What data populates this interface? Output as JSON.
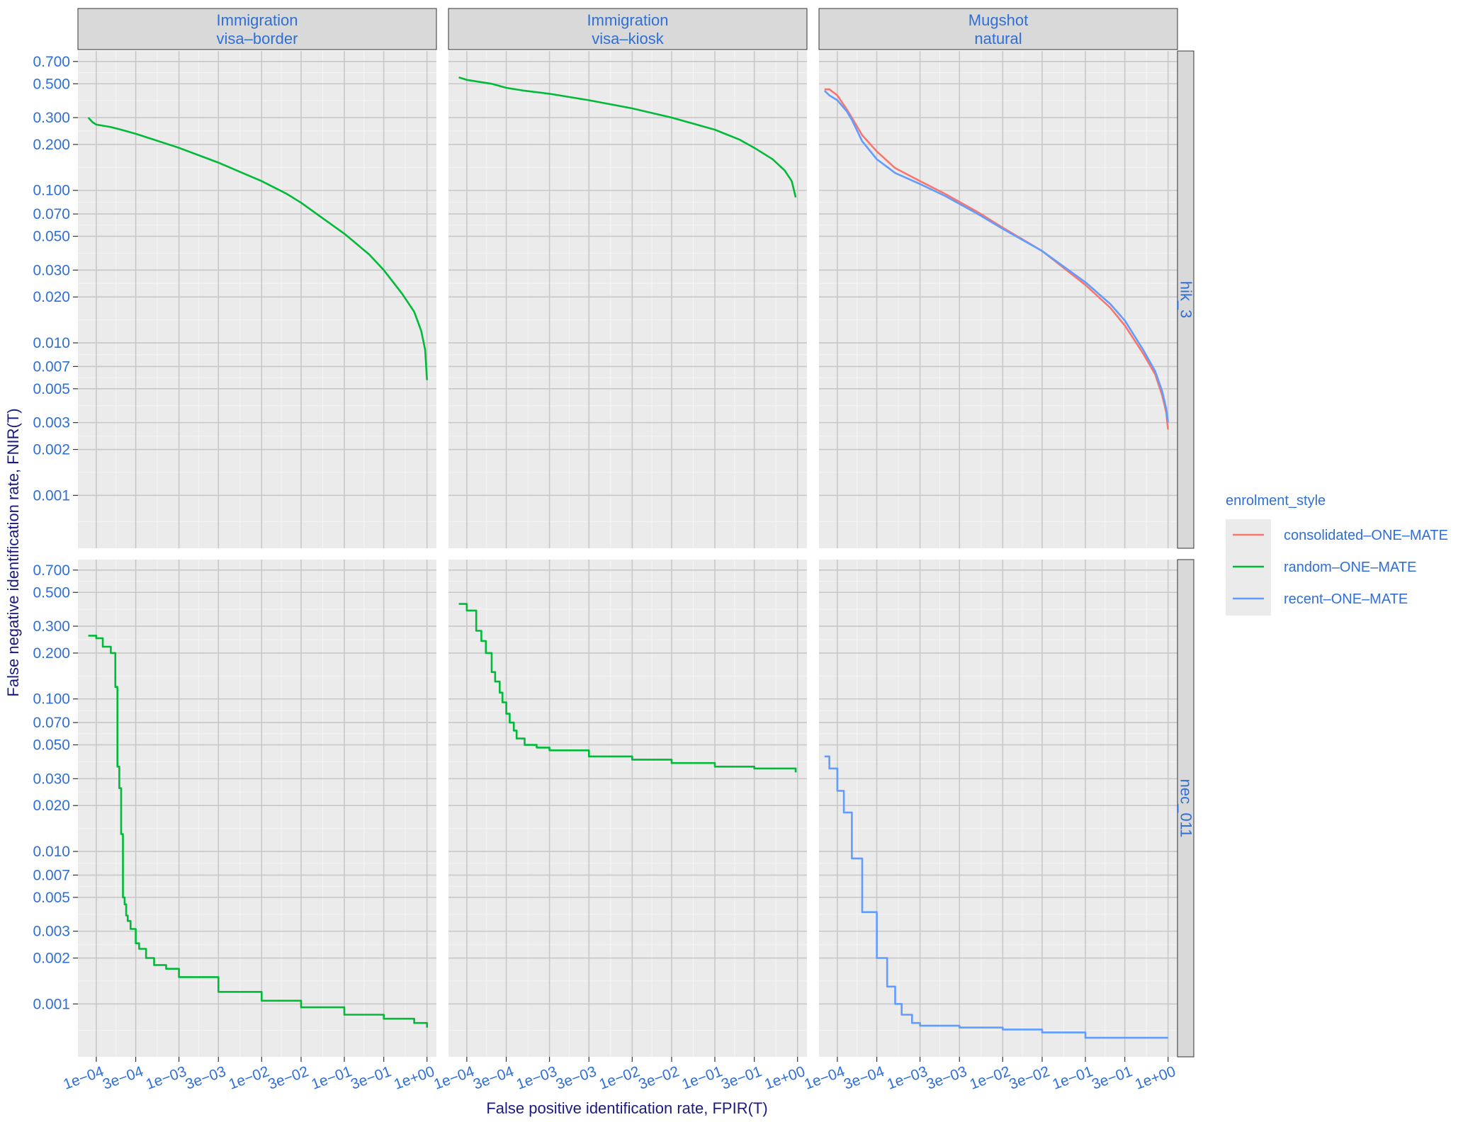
{
  "chart_data": {
    "type": "line",
    "x_label": "False positive identification rate, FPIR(T)",
    "y_label": "False negative identification rate, FNIR(T)",
    "x_scale": "log10",
    "y_scale": "log10",
    "x_ticks": [
      0.0001,
      0.0003,
      0.001,
      0.003,
      0.01,
      0.03,
      0.1,
      0.3,
      1
    ],
    "x_tick_labels": [
      "1e−04",
      "3e−04",
      "1e−03",
      "3e−03",
      "1e−02",
      "3e−02",
      "1e−01",
      "3e−01",
      "1e+00"
    ],
    "y_ticks": [
      0.001,
      0.002,
      0.003,
      0.005,
      0.007,
      0.01,
      0.02,
      0.03,
      0.05,
      0.07,
      0.1,
      0.2,
      0.3,
      0.5,
      0.7
    ],
    "y_tick_labels": [
      "0.001",
      "0.002",
      "0.003",
      "0.005",
      "0.007",
      "0.010",
      "0.020",
      "0.030",
      "0.050",
      "0.070",
      "0.100",
      "0.200",
      "0.300",
      "0.500",
      "0.700"
    ],
    "xlim": [
      6e-05,
      1.3
    ],
    "ylim": [
      0.00045,
      0.82
    ],
    "columns": [
      {
        "line1": "Immigration",
        "line2": "visa–border"
      },
      {
        "line1": "Immigration",
        "line2": "visa–kiosk"
      },
      {
        "line1": "Mugshot",
        "line2": "natural"
      }
    ],
    "rows": [
      "hik_3",
      "nec_011"
    ],
    "legend": {
      "title": "enrolment_style",
      "position": "right",
      "entries": [
        {
          "name": "consolidated–ONE–MATE",
          "color": "#F8766D"
        },
        {
          "name": "random–ONE–MATE",
          "color": "#00BA38"
        },
        {
          "name": "recent–ONE–MATE",
          "color": "#619CFF"
        }
      ]
    },
    "panels": [
      {
        "row": 0,
        "col": 0,
        "series": [
          {
            "name": "random–ONE–MATE",
            "color": "#00BA38",
            "x": [
              8e-05,
              9e-05,
              0.0001,
              0.00015,
              0.0002,
              0.0003,
              0.0005,
              0.001,
              0.002,
              0.003,
              0.005,
              0.01,
              0.02,
              0.03,
              0.05,
              0.1,
              0.2,
              0.3,
              0.5,
              0.7,
              0.85,
              0.95,
              1.0
            ],
            "y": [
              0.3,
              0.28,
              0.27,
              0.26,
              0.25,
              0.235,
              0.215,
              0.19,
              0.165,
              0.152,
              0.135,
              0.115,
              0.095,
              0.083,
              0.068,
              0.052,
              0.038,
              0.03,
              0.021,
              0.016,
              0.012,
              0.009,
              0.0057
            ]
          }
        ]
      },
      {
        "row": 0,
        "col": 1,
        "series": [
          {
            "name": "random–ONE–MATE",
            "color": "#00BA38",
            "x": [
              8e-05,
              0.0001,
              0.0002,
              0.0003,
              0.0005,
              0.001,
              0.003,
              0.01,
              0.03,
              0.1,
              0.2,
              0.3,
              0.5,
              0.7,
              0.85,
              0.95
            ],
            "y": [
              0.55,
              0.53,
              0.5,
              0.47,
              0.45,
              0.43,
              0.39,
              0.345,
              0.3,
              0.25,
              0.215,
              0.19,
              0.16,
              0.135,
              0.115,
              0.09
            ]
          }
        ]
      },
      {
        "row": 0,
        "col": 2,
        "series": [
          {
            "name": "consolidated–ONE–MATE",
            "color": "#F8766D",
            "x": [
              7e-05,
              8e-05,
              0.0001,
              0.00013,
              0.00015,
              0.0002,
              0.0003,
              0.0005,
              0.001,
              0.002,
              0.005,
              0.01,
              0.03,
              0.1,
              0.2,
              0.3,
              0.5,
              0.7,
              0.85,
              0.95,
              1.0
            ],
            "y": [
              0.46,
              0.46,
              0.42,
              0.34,
              0.3,
              0.23,
              0.18,
              0.14,
              0.115,
              0.095,
              0.072,
              0.057,
              0.04,
              0.024,
              0.017,
              0.013,
              0.0085,
              0.0062,
              0.0045,
              0.0035,
              0.0027
            ]
          },
          {
            "name": "recent–ONE–MATE",
            "color": "#619CFF",
            "x": [
              7e-05,
              8e-05,
              0.0001,
              0.00013,
              0.00015,
              0.0002,
              0.0003,
              0.0005,
              0.001,
              0.002,
              0.005,
              0.01,
              0.03,
              0.1,
              0.2,
              0.3,
              0.5,
              0.7,
              0.85,
              0.95,
              1.0
            ],
            "y": [
              0.45,
              0.42,
              0.39,
              0.33,
              0.29,
              0.21,
              0.16,
              0.13,
              0.11,
              0.092,
              0.07,
              0.056,
              0.04,
              0.025,
              0.018,
              0.014,
              0.009,
              0.0065,
              0.0048,
              0.0037,
              0.003
            ]
          }
        ]
      },
      {
        "row": 1,
        "col": 0,
        "series": [
          {
            "name": "random–ONE–MATE",
            "color": "#00BA38",
            "step": true,
            "x": [
              8e-05,
              0.0001,
              0.00012,
              0.00015,
              0.00017,
              0.00018,
              0.00019,
              0.0002,
              0.00021,
              0.00022,
              0.00023,
              0.00024,
              0.00026,
              0.0003,
              0.00033,
              0.0004,
              0.0005,
              0.0007,
              0.001,
              0.003,
              0.01,
              0.03,
              0.1,
              0.3,
              0.7,
              1.0
            ],
            "y": [
              0.26,
              0.25,
              0.22,
              0.2,
              0.12,
              0.036,
              0.026,
              0.013,
              0.005,
              0.0045,
              0.0038,
              0.0035,
              0.0031,
              0.0025,
              0.0023,
              0.002,
              0.0018,
              0.0017,
              0.0015,
              0.0012,
              0.00105,
              0.00095,
              0.00085,
              0.0008,
              0.00075,
              0.0007
            ]
          }
        ]
      },
      {
        "row": 1,
        "col": 1,
        "series": [
          {
            "name": "random–ONE–MATE",
            "color": "#00BA38",
            "step": true,
            "x": [
              8e-05,
              0.0001,
              0.00013,
              0.00015,
              0.00017,
              0.0002,
              0.00022,
              0.00025,
              0.00027,
              0.0003,
              0.00033,
              0.00037,
              0.0004,
              0.0005,
              0.0007,
              0.001,
              0.003,
              0.01,
              0.03,
              0.1,
              0.3,
              0.95
            ],
            "y": [
              0.42,
              0.38,
              0.28,
              0.24,
              0.2,
              0.15,
              0.13,
              0.11,
              0.095,
              0.08,
              0.07,
              0.062,
              0.055,
              0.05,
              0.048,
              0.046,
              0.042,
              0.04,
              0.038,
              0.036,
              0.035,
              0.033
            ]
          }
        ]
      },
      {
        "row": 1,
        "col": 2,
        "series": [
          {
            "name": "recent–ONE–MATE",
            "color": "#619CFF",
            "step": true,
            "x": [
              7e-05,
              8e-05,
              0.0001,
              0.00012,
              0.00015,
              0.0002,
              0.0003,
              0.0004,
              0.0005,
              0.0006,
              0.0008,
              0.001,
              0.003,
              0.01,
              0.03,
              0.1,
              0.3,
              1.0
            ],
            "y": [
              0.042,
              0.035,
              0.025,
              0.018,
              0.009,
              0.004,
              0.002,
              0.0013,
              0.001,
              0.00085,
              0.00075,
              0.00072,
              0.0007,
              0.00068,
              0.00065,
              0.0006,
              0.0006,
              0.0006
            ]
          }
        ]
      }
    ]
  }
}
